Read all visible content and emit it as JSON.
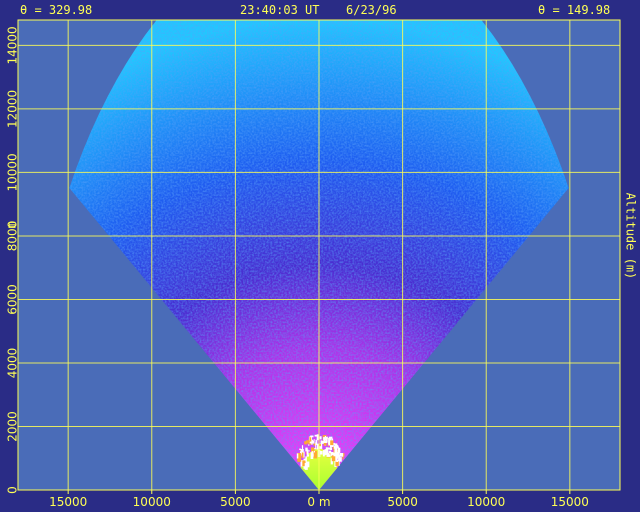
{
  "header": {
    "left_angle": "θ = 329.98",
    "center_time": "23:40:03 UT",
    "center_date": "6/23/96",
    "right_angle": "θ = 149.98"
  },
  "colors": {
    "frame": "#2a2c86",
    "plot_background": "#4a6cb8",
    "grid": "#ffff55",
    "text": "#ffff55"
  },
  "chart_data": {
    "type": "heatmap",
    "title": "",
    "xlabel": "",
    "ylabel_left": "m",
    "ylabel_right": "Altitude (m)",
    "xlim": [
      -18000,
      18000
    ],
    "ylim": [
      0,
      14800
    ],
    "x_ticks": [
      {
        "value": -15000,
        "label": "15000"
      },
      {
        "value": -10000,
        "label": "10000"
      },
      {
        "value": -5000,
        "label": "5000"
      },
      {
        "value": 0,
        "label": "0 m"
      },
      {
        "value": 5000,
        "label": "5000"
      },
      {
        "value": 10000,
        "label": "10000"
      },
      {
        "value": 15000,
        "label": "15000"
      }
    ],
    "y_ticks": [
      {
        "value": 0,
        "label": "0"
      },
      {
        "value": 2000,
        "label": "2000"
      },
      {
        "value": 4000,
        "label": "4000"
      },
      {
        "value": 6000,
        "label": "6000"
      },
      {
        "value": 8000,
        "label": "8000"
      },
      {
        "value": 10000,
        "label": "10000"
      },
      {
        "value": 12000,
        "label": "12000"
      },
      {
        "value": 14000,
        "label": "14000"
      }
    ],
    "grid": true,
    "scan_sector": {
      "apex_x": 0,
      "apex_y": 0,
      "max_range": 17700,
      "angle_from_vertical_deg": 57.5
    },
    "intensity_layers": [
      {
        "name": "far",
        "range_from": 6000,
        "range_to": 17700,
        "color": "#1f8fff"
      },
      {
        "name": "mid",
        "range_from": 2000,
        "range_to": 8000,
        "color": "#6a2fd8"
      },
      {
        "name": "near",
        "range_from": 1000,
        "range_to": 3800,
        "color": "#cc33ee"
      },
      {
        "name": "cloud",
        "range_from": 1200,
        "range_to": 1800,
        "color": "#ffffff"
      },
      {
        "name": "ground",
        "range_from": 0,
        "range_to": 1300,
        "color": "#c8ff2a"
      }
    ]
  }
}
